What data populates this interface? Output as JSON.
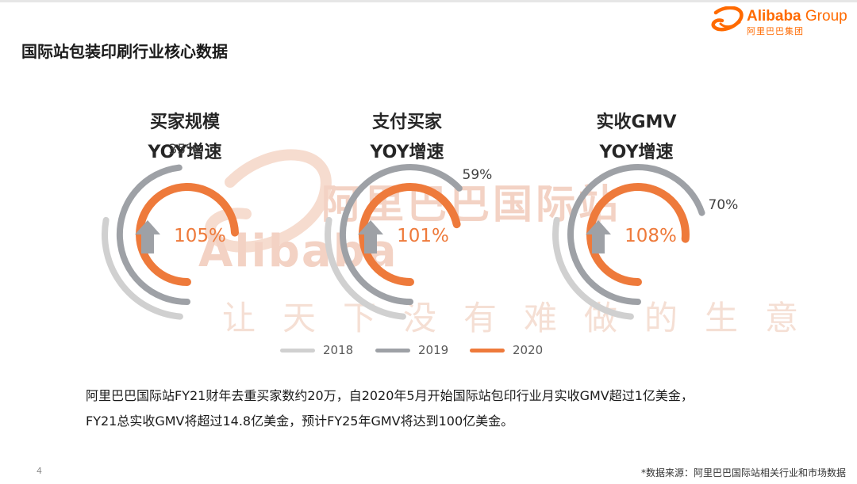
{
  "header": {
    "title": "国际站包装印刷行业核心数据",
    "logo_name": "Alibaba",
    "logo_group": " Group",
    "logo_sub": "阿里巴巴集团"
  },
  "watermark": {
    "line1": "阿里巴巴国际站",
    "line2": "Alibaba",
    "line3": "让天下没有难做的生意"
  },
  "legend": [
    {
      "label": "2018",
      "color": "#d0d0d0"
    },
    {
      "label": "2019",
      "color": "#9ea1a6"
    },
    {
      "label": "2020",
      "color": "#ee7a3b"
    }
  ],
  "chart_data": [
    {
      "type": "radial_bar",
      "title_line1": "买家规模",
      "title_line2": "YOY增速",
      "series": [
        {
          "name": "2018",
          "value": null
        },
        {
          "name": "2019",
          "value": 35,
          "label": "35%"
        },
        {
          "name": "2020",
          "value": 105,
          "label": "105%"
        }
      ],
      "icon": "up-arrow-icon"
    },
    {
      "type": "radial_bar",
      "title_line1": "支付买家",
      "title_line2": "YOY增速",
      "series": [
        {
          "name": "2018",
          "value": null
        },
        {
          "name": "2019",
          "value": 59,
          "label": "59%"
        },
        {
          "name": "2020",
          "value": 101,
          "label": "101%"
        }
      ],
      "icon": "up-arrow-icon"
    },
    {
      "type": "radial_bar",
      "title_line1": "实收GMV",
      "title_line2": "YOY增速",
      "series": [
        {
          "name": "2018",
          "value": null
        },
        {
          "name": "2019",
          "value": 70,
          "label": "70%"
        },
        {
          "name": "2020",
          "value": 108,
          "label": "108%"
        }
      ],
      "icon": "up-arrow-icon"
    }
  ],
  "body": {
    "line1": "阿里巴巴国际站FY21财年去重买家数约20万，自2020年5月开始国际站包印行业月实收GMV超过1亿美金，",
    "line2": "FY21总实收GMV将超过14.8亿美金，预计FY25年GMV将达到100亿美金。"
  },
  "footer": {
    "page_number": "4",
    "source": "*数据来源：阿里巴巴国际站相关行业和市场数据"
  }
}
